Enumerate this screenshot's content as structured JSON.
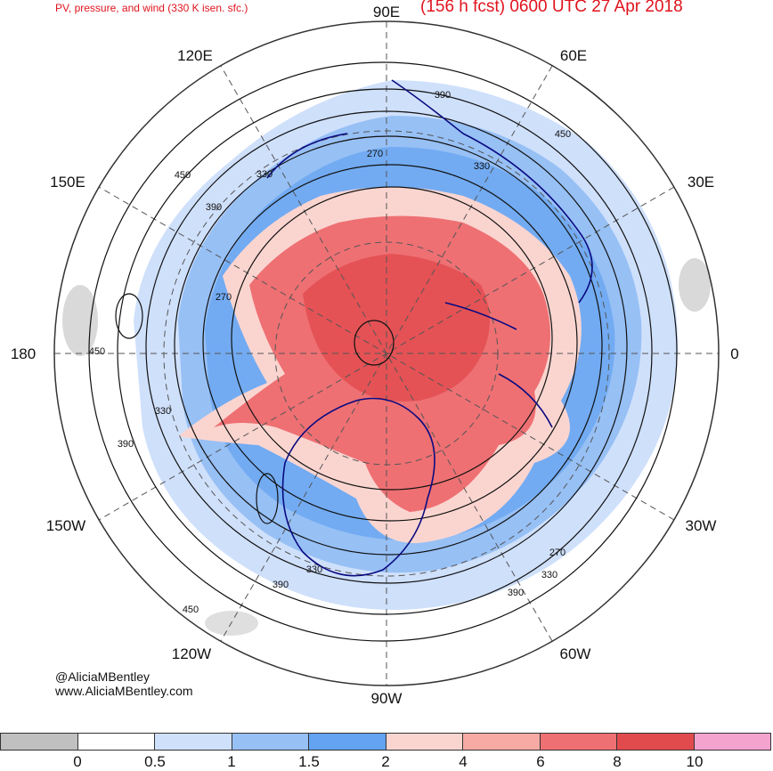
{
  "title_left": "PV, pressure, and wind (330 K isen. sfc.)",
  "title_right": "(156 h fcst) 0600 UTC 27 Apr 2018",
  "credit_handle": "@AliciaMBentley",
  "credit_site": "www.AliciaMBentley.com",
  "longitude_labels": [
    "90E",
    "60E",
    "30E",
    "0",
    "30W",
    "60W",
    "90W",
    "120W",
    "150W",
    "180",
    "150E",
    "120E"
  ],
  "contour_labels": [
    "390",
    "450",
    "330",
    "270",
    "450",
    "330",
    "390",
    "270",
    "450",
    "330",
    "390",
    "330",
    "390",
    "450",
    "270",
    "330",
    "390"
  ],
  "colorbar": {
    "ticks": [
      "0",
      "0.5",
      "1",
      "1.5",
      "2",
      "4",
      "6",
      "8",
      "10"
    ],
    "colors": [
      "#c0c0c0",
      "#ffffff",
      "#cfe0fb",
      "#97c0f5",
      "#63a3f1",
      "#fad5d0",
      "#f6aaa3",
      "#ee7073",
      "#e14b4e",
      "#f4a3cf"
    ]
  },
  "colors": {
    "title": "#e0141e",
    "coastline": "#0a0a80",
    "contour": "#111111",
    "graticule": "#555555"
  }
}
